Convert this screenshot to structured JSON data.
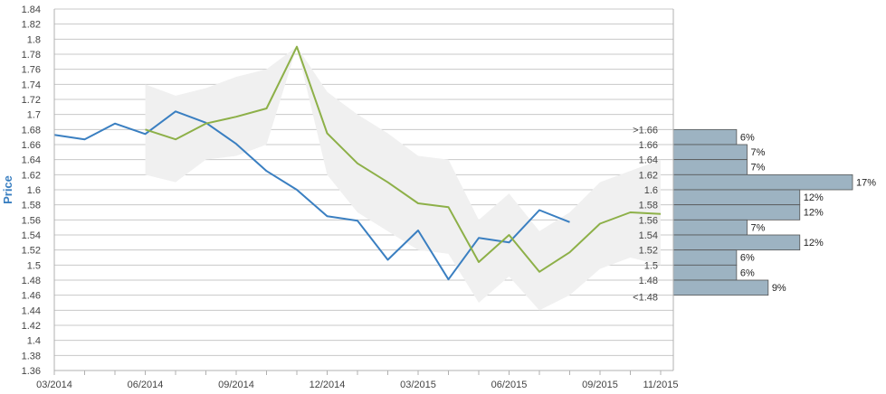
{
  "chart_data": {
    "type": "line",
    "ylabel": "Price",
    "ylim": [
      1.36,
      1.84
    ],
    "y_ticks": [
      "1.36",
      "1.38",
      "1.4",
      "1.42",
      "1.44",
      "1.46",
      "1.48",
      "1.5",
      "1.52",
      "1.54",
      "1.56",
      "1.58",
      "1.6",
      "1.62",
      "1.64",
      "1.66",
      "1.68",
      "1.7",
      "1.72",
      "1.74",
      "1.76",
      "1.78",
      "1.8",
      "1.82",
      "1.84"
    ],
    "x_ticks": [
      "03/2014",
      "06/2014",
      "09/2014",
      "12/2014",
      "03/2015",
      "06/2015",
      "09/2015",
      "11/2015"
    ],
    "grid": "horizontal",
    "x_months": [
      "03/2014",
      "04/2014",
      "05/2014",
      "06/2014",
      "07/2014",
      "08/2014",
      "09/2014",
      "10/2014",
      "11/2014",
      "12/2014",
      "01/2015",
      "02/2015",
      "03/2015",
      "04/2015",
      "05/2015",
      "06/2015",
      "07/2015",
      "08/2015",
      "09/2015",
      "10/2015",
      "11/2015"
    ],
    "series": [
      {
        "color": "#3a7fc1",
        "x": [
          "03/2014",
          "04/2014",
          "05/2014",
          "06/2014",
          "07/2014",
          "08/2014",
          "09/2014",
          "10/2014",
          "11/2014",
          "12/2014",
          "01/2015",
          "02/2015",
          "03/2015",
          "04/2015",
          "05/2015",
          "06/2015",
          "07/2015",
          "08/2015"
        ],
        "values": [
          1.673,
          1.667,
          1.688,
          1.674,
          1.704,
          1.689,
          1.661,
          1.625,
          1.6,
          1.565,
          1.559,
          1.507,
          1.546,
          1.481,
          1.536,
          1.53,
          1.573,
          1.557
        ]
      },
      {
        "color": "#8db048",
        "x": [
          "06/2014",
          "07/2014",
          "08/2014",
          "09/2014",
          "10/2014",
          "11/2014",
          "12/2014",
          "01/2015",
          "02/2015",
          "03/2015",
          "04/2015",
          "05/2015",
          "06/2015",
          "07/2015",
          "08/2015",
          "09/2015",
          "10/2015",
          "11/2015"
        ],
        "values": [
          1.68,
          1.667,
          1.688,
          1.697,
          1.708,
          1.79,
          1.675,
          1.635,
          1.61,
          1.582,
          1.577,
          1.504,
          1.54,
          1.491,
          1.517,
          1.555,
          1.57,
          1.568
        ]
      }
    ],
    "band": {
      "color": "#f0f0f0",
      "x": [
        "06/2014",
        "07/2014",
        "08/2014",
        "09/2014",
        "10/2014",
        "11/2014",
        "12/2014",
        "01/2015",
        "02/2015",
        "03/2015",
        "04/2015",
        "05/2015",
        "06/2015",
        "07/2015",
        "08/2015",
        "09/2015",
        "10/2015",
        "11/2015"
      ],
      "upper": [
        1.74,
        1.725,
        1.735,
        1.75,
        1.76,
        1.79,
        1.73,
        1.7,
        1.675,
        1.645,
        1.64,
        1.56,
        1.595,
        1.545,
        1.57,
        1.61,
        1.625,
        1.64
      ],
      "lower": [
        1.62,
        1.61,
        1.64,
        1.645,
        1.66,
        1.79,
        1.62,
        1.57,
        1.545,
        1.52,
        1.515,
        1.45,
        1.485,
        1.44,
        1.46,
        1.495,
        1.51,
        1.5
      ]
    },
    "histogram": {
      "color": "#9db3c2",
      "bins": [
        {
          "label": ">1.66",
          "top": 1.68,
          "bottom": 1.66,
          "pct": 6
        },
        {
          "label": "1.66",
          "top": 1.66,
          "bottom": 1.64,
          "pct": 7
        },
        {
          "label": "1.64",
          "top": 1.64,
          "bottom": 1.62,
          "pct": 7
        },
        {
          "label": "1.62",
          "top": 1.62,
          "bottom": 1.6,
          "pct": 17
        },
        {
          "label": "1.6",
          "top": 1.6,
          "bottom": 1.58,
          "pct": 12
        },
        {
          "label": "1.58",
          "top": 1.58,
          "bottom": 1.56,
          "pct": 12
        },
        {
          "label": "1.56",
          "top": 1.56,
          "bottom": 1.54,
          "pct": 7
        },
        {
          "label": "1.54",
          "top": 1.54,
          "bottom": 1.52,
          "pct": 12
        },
        {
          "label": "1.52",
          "top": 1.52,
          "bottom": 1.5,
          "pct": 6
        },
        {
          "label": "1.5",
          "top": 1.5,
          "bottom": 1.48,
          "pct": 6
        },
        {
          "label": "1.48",
          "top": 1.48,
          "bottom": 1.46,
          "pct": 9
        }
      ],
      "extra_label": "<1.48",
      "extra_label_value": 1.465,
      "max_pct": 17
    }
  }
}
